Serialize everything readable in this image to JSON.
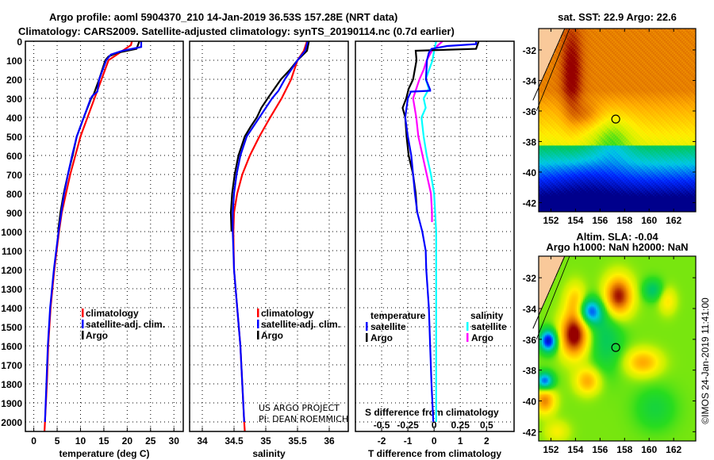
{
  "title": {
    "line1": "Argo profile: aoml 5904370_210 14-Jan-2019 36.53S 157.28E (NRT data)",
    "line2": "Climatology: CARS2009. Satellite-adjusted climatology: synTS_20190114.nc (0.7d earlier)"
  },
  "colors": {
    "climatology": "#ff0000",
    "satellite": "#0000ff",
    "argo": "#000000",
    "sal_satellite": "#00ffff",
    "sal_argo": "#ff00ff",
    "land": "#f9c99a"
  },
  "credit": {
    "line1": "US ARGO PROJECT",
    "line2": "PI: DEAN ROEMMICH"
  },
  "copyright": "©IMOS 24-Jan-2019 11:41:00",
  "chart_data": [
    {
      "type": "line",
      "name": "temperature",
      "xlabel": "temperature (deg C)",
      "ylabel": "depth",
      "xlim": [
        -1.8,
        32
      ],
      "ylim": [
        2050,
        0
      ],
      "xticks": [
        "0",
        "5",
        "10",
        "15",
        "20",
        "25",
        "30"
      ],
      "xtick_values": [
        0,
        5,
        10,
        15,
        20,
        25,
        30
      ],
      "yticks": [
        "0",
        "100",
        "200",
        "300",
        "400",
        "500",
        "600",
        "700",
        "800",
        "900",
        "1000",
        "1100",
        "1200",
        "1300",
        "1400",
        "1500",
        "1600",
        "1700",
        "1800",
        "1900",
        "2000"
      ],
      "legend": [
        "climatology",
        "satellite-adj. clim.",
        "Argo"
      ],
      "series": [
        {
          "name": "climatology",
          "depth": [
            0,
            20,
            50,
            100,
            200,
            300,
            400,
            500,
            600,
            700,
            800,
            900,
            1000,
            1200,
            1400,
            1600,
            1800,
            2050
          ],
          "values": [
            21,
            20.8,
            19,
            16,
            14.5,
            13,
            11.5,
            10,
            8.9,
            7.8,
            6.9,
            6,
            5.4,
            4.4,
            3.6,
            3.1,
            2.8,
            2.3
          ]
        },
        {
          "name": "satellite-adj. clim.",
          "depth": [
            0,
            30,
            50,
            70,
            100,
            200,
            265,
            285,
            300,
            400,
            500,
            600,
            700,
            800,
            900,
            1000,
            1200,
            1400,
            1600,
            1800,
            2000
          ],
          "values": [
            23,
            23,
            19,
            16.5,
            15.5,
            14,
            13.6,
            12.6,
            12.2,
            10.7,
            9.2,
            8.2,
            7.3,
            6.5,
            5.9,
            5.3,
            4.3,
            3.5,
            3,
            2.7,
            2.4
          ]
        },
        {
          "name": "Argo",
          "depth": [
            0,
            40,
            60,
            80,
            100,
            200,
            280,
            300,
            400,
            500,
            600,
            700,
            800,
            900,
            1000
          ],
          "values": [
            22.6,
            22,
            18,
            16,
            15.3,
            14,
            12.8,
            12.3,
            10.7,
            9.2,
            8.3,
            7.3,
            6.4,
            5.7,
            5.2
          ]
        }
      ]
    },
    {
      "type": "line",
      "name": "salinity",
      "xlabel": "salinity",
      "ylabel": "depth",
      "xlim": [
        33.8,
        36.3
      ],
      "ylim": [
        2050,
        0
      ],
      "xticks": [
        "34",
        "34.5",
        "35",
        "35.5",
        "36"
      ],
      "xtick_values": [
        34,
        34.5,
        35,
        35.5,
        36
      ],
      "legend": [
        "climatology",
        "satellite-adj. clim.",
        "Argo"
      ],
      "series": [
        {
          "name": "climatology",
          "depth": [
            0,
            50,
            100,
            200,
            300,
            400,
            500,
            600,
            700,
            800,
            900,
            1000,
            1200,
            1400,
            1600,
            1800,
            2000,
            2050
          ],
          "values": [
            35.65,
            35.6,
            35.5,
            35.4,
            35.25,
            35.07,
            34.9,
            34.75,
            34.63,
            34.55,
            34.5,
            34.49,
            34.5,
            34.55,
            34.6,
            34.63,
            34.66,
            34.67
          ]
        },
        {
          "name": "satellite-adj. clim.",
          "depth": [
            0,
            50,
            100,
            200,
            260,
            280,
            300,
            400,
            500,
            600,
            700,
            800,
            900,
            1000,
            1200,
            1400,
            1600,
            1800,
            2000
          ],
          "values": [
            35.66,
            35.62,
            35.5,
            35.3,
            35.2,
            35.15,
            35.1,
            34.9,
            34.7,
            34.6,
            34.54,
            34.5,
            34.48,
            34.48,
            34.5,
            34.55,
            34.6,
            34.63,
            34.66
          ]
        },
        {
          "name": "Argo",
          "depth": [
            0,
            50,
            100,
            150,
            200,
            300,
            350,
            400,
            450,
            500,
            600,
            700,
            800,
            900,
            1000
          ],
          "values": [
            35.68,
            35.65,
            35.5,
            35.38,
            35.24,
            35.03,
            34.93,
            34.86,
            34.76,
            34.67,
            34.57,
            34.51,
            34.47,
            34.45,
            34.46
          ]
        }
      ]
    },
    {
      "type": "line",
      "name": "difference",
      "xlabel": "T difference from climatology",
      "x2label": "S difference from climatology",
      "xlim": [
        -3,
        3.05
      ],
      "ylim": [
        2050,
        0
      ],
      "xticks": [
        "-2",
        "-1",
        "0",
        "1",
        "2"
      ],
      "xtick_values": [
        -2,
        -1,
        0,
        1,
        2
      ],
      "x2ticks": [
        "-0.5",
        "-0.25",
        "0",
        "0.25",
        "0.5"
      ],
      "x2tick_values": [
        -0.5,
        -0.25,
        0,
        0.25,
        0.5
      ],
      "legend": {
        "temperature": "temperature",
        "salinity": "salinity",
        "satellite": "satellite",
        "argo": "Argo"
      },
      "series": [
        {
          "name": "T satellite",
          "axis": "T",
          "depth": [
            0,
            15,
            25,
            40,
            60,
            100,
            200,
            255,
            260,
            265,
            270,
            300,
            400,
            500,
            600,
            700,
            800,
            900,
            1000,
            1100,
            1200,
            1400,
            1600,
            1800,
            2000
          ],
          "values": [
            1.6,
            1.6,
            0.5,
            -0.1,
            -0.2,
            -0.27,
            -0.31,
            -0.15,
            -0.15,
            -0.9,
            -0.9,
            -1.0,
            -1.1,
            -1.0,
            -0.87,
            -0.8,
            -0.73,
            -0.64,
            -0.45,
            -0.32,
            -0.3,
            -0.2,
            -0.15,
            -0.1,
            -0.03
          ]
        },
        {
          "name": "T Argo",
          "axis": "T",
          "depth": [
            0,
            40,
            50,
            100,
            200,
            250,
            300,
            350,
            400,
            500,
            600,
            700,
            800,
            900
          ],
          "values": [
            1.7,
            1.6,
            -0.7,
            -0.67,
            -0.8,
            -0.97,
            -1.06,
            -1.2,
            -1.1,
            -1.05,
            -0.97,
            -0.8,
            -0.7,
            -0.65
          ]
        },
        {
          "name": "S satellite",
          "axis": "S",
          "depth": [
            0,
            50,
            100,
            200,
            250,
            300,
            350,
            400,
            500,
            600,
            700,
            800,
            1000,
            1500,
            2000
          ],
          "values": [
            0.02,
            0.0,
            -0.015,
            -0.08,
            -0.05,
            -0.1,
            -0.08,
            -0.12,
            -0.1,
            -0.07,
            -0.03,
            0.0,
            0.02,
            0.02,
            0.02
          ]
        },
        {
          "name": "S Argo",
          "axis": "S",
          "depth": [
            0,
            50,
            100,
            150,
            200,
            300,
            400,
            500,
            600,
            700,
            800,
            900,
            950
          ],
          "values": [
            0.08,
            -0.02,
            -0.07,
            -0.1,
            -0.14,
            -0.2,
            -0.17,
            -0.15,
            -0.11,
            -0.07,
            -0.03,
            -0.02,
            -0.02
          ]
        }
      ]
    },
    {
      "type": "heatmap",
      "name": "sst-map",
      "title": "sat. SST: 22.9 Argo: 22.6",
      "lon_range": [
        151,
        163.8
      ],
      "lat_range": [
        -42.6,
        -30.6
      ],
      "xticks": [
        "152",
        "154",
        "156",
        "158",
        "160",
        "162"
      ],
      "xtick_values": [
        152,
        154,
        156,
        158,
        160,
        162
      ],
      "yticks": [
        "-32",
        "-34",
        "-36",
        "-38",
        "-40",
        "-42"
      ],
      "ytick_values": [
        -32,
        -34,
        -36,
        -38,
        -40,
        -42
      ],
      "profile_location": {
        "lon": 157.28,
        "lat": -36.53
      }
    },
    {
      "type": "heatmap",
      "name": "sla-map",
      "title": "Altim. SLA: -0.04",
      "subtitle": "Argo h1000: NaN h2000: NaN",
      "lon_range": [
        151,
        163.8
      ],
      "lat_range": [
        -42.6,
        -30.6
      ],
      "xticks": [
        "152",
        "154",
        "156",
        "158",
        "160",
        "162"
      ],
      "xtick_values": [
        152,
        154,
        156,
        158,
        160,
        162
      ],
      "yticks": [
        "-32",
        "-34",
        "-36",
        "-38",
        "-40",
        "-42"
      ],
      "ytick_values": [
        -32,
        -34,
        -36,
        -38,
        -40,
        -42
      ],
      "profile_location": {
        "lon": 157.28,
        "lat": -36.53
      }
    }
  ]
}
